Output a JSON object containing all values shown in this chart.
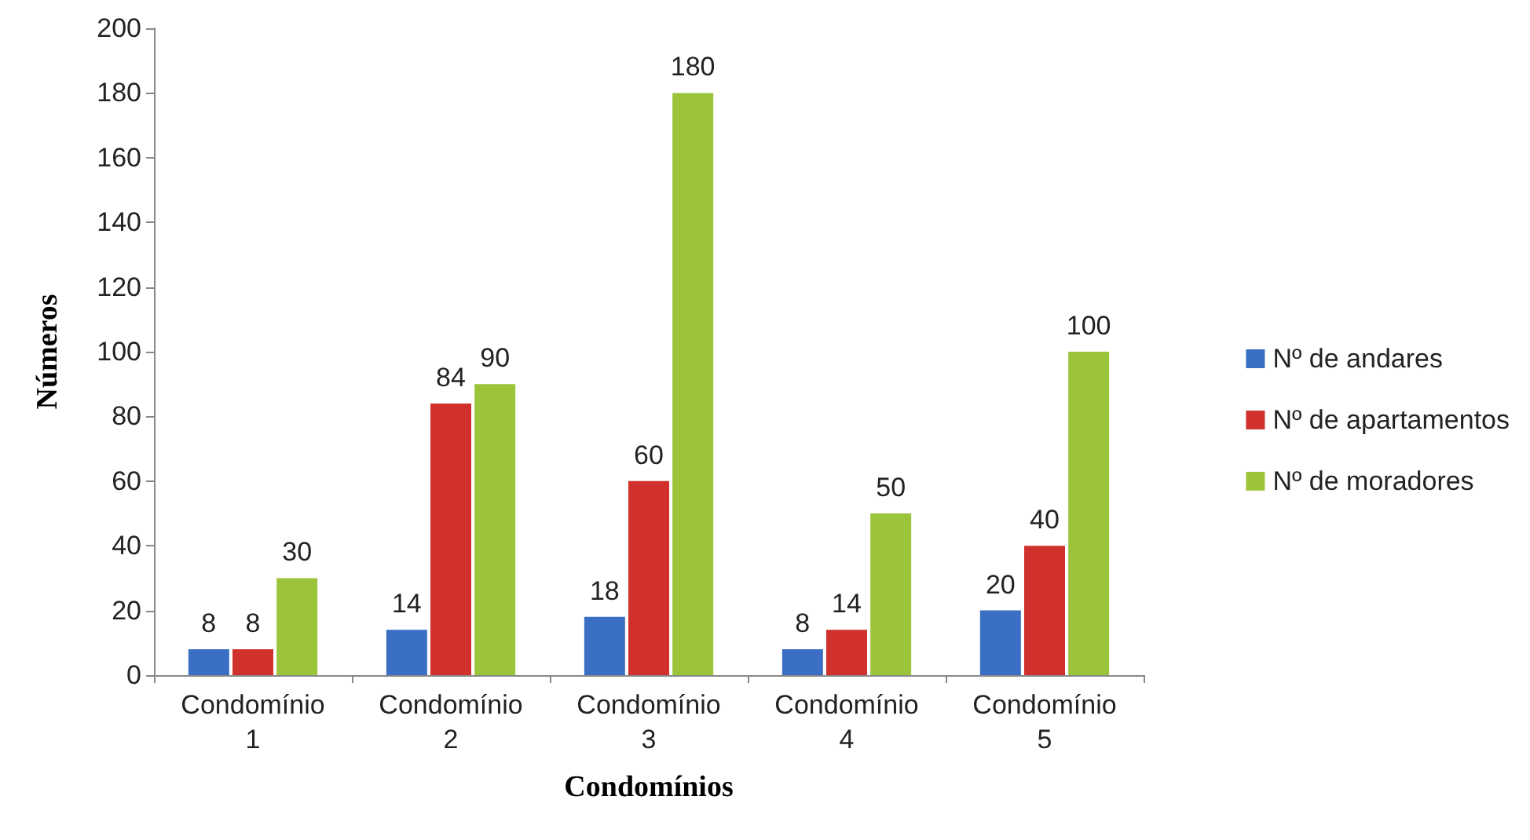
{
  "chart_data": {
    "type": "bar",
    "xlabel": "Condomínios",
    "ylabel": "Números",
    "categories": [
      "Condomínio 1",
      "Condomínio 2",
      "Condomínio 3",
      "Condomínio 4",
      "Condomínio 5"
    ],
    "series": [
      {
        "name": "Nº de andares",
        "color": "#3b6fc4",
        "values": [
          8,
          14,
          18,
          8,
          20
        ]
      },
      {
        "name": "Nº de apartamentos",
        "color": "#d0312d",
        "values": [
          8,
          84,
          60,
          14,
          40
        ]
      },
      {
        "name": "Nº de moradores",
        "color": "#9cc43a",
        "values": [
          30,
          90,
          180,
          50,
          100
        ]
      }
    ],
    "ylim": [
      0,
      200
    ],
    "yticks": [
      0,
      20,
      40,
      60,
      80,
      100,
      120,
      140,
      160,
      180,
      200
    ],
    "data_labels": true,
    "legend": "right",
    "grid": false
  }
}
